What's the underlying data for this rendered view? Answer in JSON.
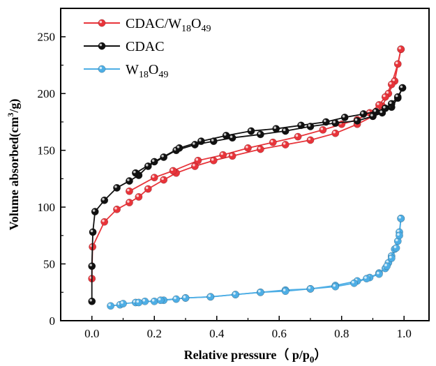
{
  "chart_data": {
    "type": "scatter",
    "xlabel": "Relative pressure（ p/p0）",
    "ylabel": "Volume absorbed(cm3/g)",
    "xlim": [
      -0.1,
      1.08
    ],
    "ylim": [
      0,
      275
    ],
    "xticks": [
      "0.0",
      "0.2",
      "0.4",
      "0.6",
      "0.8",
      "1.0"
    ],
    "yticks": [
      "0",
      "50",
      "100",
      "150",
      "200",
      "250"
    ],
    "legend_position": "top-left",
    "grid": false,
    "series": [
      {
        "name": "CDAC/W18O49",
        "color": "#e8343a",
        "adsorption": [
          [
            0.0,
            37
          ],
          [
            0.002,
            65
          ],
          [
            0.04,
            87
          ],
          [
            0.08,
            98
          ],
          [
            0.12,
            104
          ],
          [
            0.15,
            109
          ],
          [
            0.18,
            116
          ],
          [
            0.23,
            124
          ],
          [
            0.27,
            130
          ],
          [
            0.33,
            136
          ],
          [
            0.39,
            141
          ],
          [
            0.45,
            145
          ],
          [
            0.54,
            151
          ],
          [
            0.62,
            155
          ],
          [
            0.7,
            159
          ],
          [
            0.78,
            165
          ],
          [
            0.85,
            173
          ],
          [
            0.9,
            180
          ],
          [
            0.93,
            189
          ],
          [
            0.95,
            200
          ],
          [
            0.97,
            211
          ],
          [
            0.99,
            239
          ]
        ],
        "desorption": [
          [
            0.99,
            239
          ],
          [
            0.98,
            226
          ],
          [
            0.96,
            208
          ],
          [
            0.94,
            197
          ],
          [
            0.92,
            190
          ],
          [
            0.89,
            183
          ],
          [
            0.85,
            177
          ],
          [
            0.8,
            173
          ],
          [
            0.74,
            168
          ],
          [
            0.66,
            162
          ],
          [
            0.58,
            157
          ],
          [
            0.5,
            152
          ],
          [
            0.42,
            146
          ],
          [
            0.34,
            141
          ],
          [
            0.26,
            132
          ],
          [
            0.2,
            126
          ],
          [
            0.12,
            114
          ]
        ]
      },
      {
        "name": "CDAC",
        "color": "#111111",
        "adsorption": [
          [
            0.0,
            17
          ],
          [
            0.0,
            48
          ],
          [
            0.003,
            78
          ],
          [
            0.01,
            96
          ],
          [
            0.04,
            106
          ],
          [
            0.08,
            117
          ],
          [
            0.12,
            123
          ],
          [
            0.15,
            128
          ],
          [
            0.18,
            136
          ],
          [
            0.23,
            144
          ],
          [
            0.27,
            150
          ],
          [
            0.33,
            155
          ],
          [
            0.39,
            158
          ],
          [
            0.45,
            161
          ],
          [
            0.54,
            164
          ],
          [
            0.62,
            167
          ],
          [
            0.7,
            171
          ],
          [
            0.78,
            174
          ],
          [
            0.85,
            176
          ],
          [
            0.9,
            180
          ],
          [
            0.93,
            183
          ],
          [
            0.96,
            188
          ],
          [
            0.98,
            196
          ],
          [
            0.995,
            205
          ]
        ],
        "desorption": [
          [
            0.995,
            205
          ],
          [
            0.98,
            197
          ],
          [
            0.96,
            191
          ],
          [
            0.94,
            187
          ],
          [
            0.91,
            184
          ],
          [
            0.87,
            182
          ],
          [
            0.81,
            179
          ],
          [
            0.75,
            175
          ],
          [
            0.67,
            172
          ],
          [
            0.59,
            169
          ],
          [
            0.51,
            167
          ],
          [
            0.43,
            163
          ],
          [
            0.35,
            158
          ],
          [
            0.28,
            152
          ],
          [
            0.2,
            140
          ],
          [
            0.14,
            130
          ]
        ]
      },
      {
        "name": "W18O49",
        "color": "#4eaee5",
        "adsorption": [
          [
            0.06,
            13
          ],
          [
            0.09,
            14
          ],
          [
            0.1,
            15
          ],
          [
            0.14,
            16
          ],
          [
            0.17,
            17
          ],
          [
            0.2,
            17
          ],
          [
            0.23,
            18
          ],
          [
            0.27,
            19
          ],
          [
            0.3,
            20
          ],
          [
            0.38,
            21
          ],
          [
            0.46,
            23
          ],
          [
            0.54,
            25
          ],
          [
            0.62,
            27
          ],
          [
            0.7,
            28
          ],
          [
            0.78,
            31
          ],
          [
            0.85,
            35
          ],
          [
            0.89,
            38
          ],
          [
            0.92,
            42
          ],
          [
            0.94,
            46
          ],
          [
            0.95,
            51
          ],
          [
            0.96,
            57
          ],
          [
            0.97,
            63
          ],
          [
            0.98,
            70
          ],
          [
            0.985,
            78
          ],
          [
            0.99,
            90
          ]
        ],
        "desorption": [
          [
            0.99,
            90
          ],
          [
            0.985,
            75
          ],
          [
            0.975,
            64
          ],
          [
            0.96,
            55
          ],
          [
            0.945,
            48
          ],
          [
            0.92,
            41
          ],
          [
            0.88,
            37
          ],
          [
            0.84,
            33
          ],
          [
            0.78,
            30
          ],
          [
            0.7,
            28
          ],
          [
            0.62,
            26
          ],
          [
            0.54,
            25
          ],
          [
            0.46,
            23
          ],
          [
            0.38,
            21
          ],
          [
            0.3,
            20
          ],
          [
            0.22,
            18
          ],
          [
            0.15,
            16
          ]
        ]
      }
    ]
  }
}
